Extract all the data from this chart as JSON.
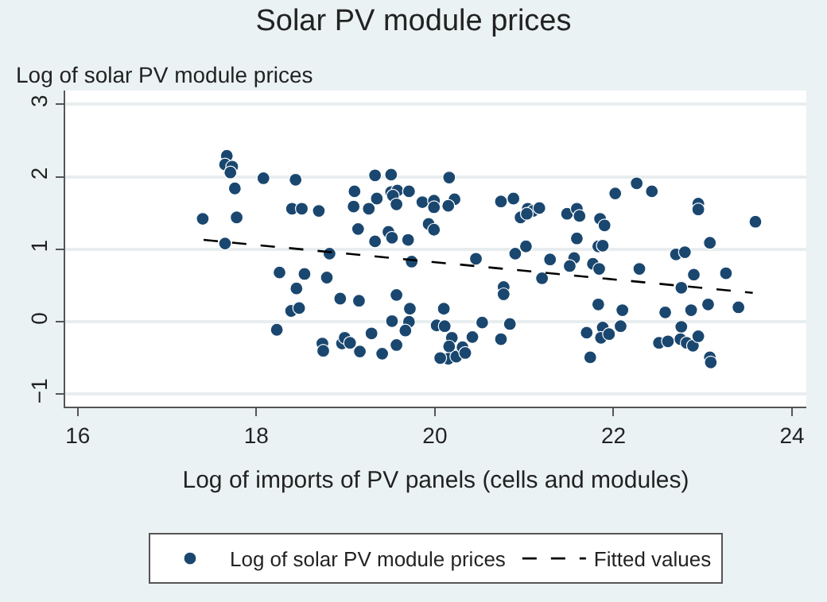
{
  "chart_data": {
    "type": "scatter",
    "title": "Solar PV module prices",
    "ylabel": "Log of solar PV module prices",
    "xlabel": "Log of imports of PV panels (cells and modules)",
    "xlim": [
      15.86,
      24.16
    ],
    "xticks": [
      16,
      18,
      20,
      22,
      24
    ],
    "ylim": [
      -1.17,
      3.19
    ],
    "yticks": [
      -1,
      0,
      1,
      2,
      3
    ],
    "grid": "y",
    "legend": "bottom",
    "series": [
      {
        "name": "Log of solar PV module prices",
        "marker": "circle",
        "color": "#1a476f",
        "x": [
          17.4,
          17.67,
          17.65,
          17.73,
          17.71,
          17.76,
          17.78,
          17.65,
          18.08,
          18.44,
          18.4,
          18.51,
          18.26,
          18.54,
          18.45,
          18.39,
          18.48,
          18.23,
          18.7,
          19.1,
          19.09,
          19.26,
          19.35,
          19.33,
          19.51,
          19.51,
          19.58,
          19.53,
          19.71,
          19.57,
          19.14,
          19.33,
          19.48,
          19.52,
          19.7,
          19.86,
          19.99,
          19.99,
          20.16,
          20.22,
          20.15,
          19.93,
          19.99,
          18.82,
          19.74,
          20.46,
          18.79,
          18.94,
          19.15,
          19.57,
          19.72,
          20.1,
          19.52,
          19.71,
          19.67,
          19.29,
          20.02,
          20.11,
          20.19,
          20.42,
          20.53,
          20.74,
          20.84,
          20.77,
          20.77,
          18.74,
          18.75,
          18.96,
          18.99,
          19.05,
          19.16,
          19.41,
          19.57,
          20.16,
          20.15,
          20.06,
          20.24,
          20.31,
          20.34,
          20.74,
          20.88,
          20.96,
          21.04,
          21.1,
          21.17,
          21.03,
          20.9,
          21.02,
          21.29,
          21.2,
          21.48,
          21.59,
          21.62,
          21.59,
          21.56,
          21.51,
          21.85,
          21.9,
          21.83,
          21.88,
          21.77,
          21.84,
          22.02,
          22.26,
          22.43,
          22.29,
          21.83,
          22.1,
          21.7,
          21.88,
          21.86,
          21.95,
          22.08,
          21.74,
          22.95,
          22.95,
          23.08,
          23.59,
          22.7,
          22.8,
          22.9,
          23.26,
          22.76,
          22.58,
          22.87,
          23.06,
          23.4,
          22.76,
          22.51,
          22.61,
          22.75,
          22.82,
          22.89,
          22.95,
          23.08,
          23.09
        ],
        "values": [
          1.42,
          2.29,
          2.17,
          2.14,
          2.06,
          1.84,
          1.44,
          1.08,
          1.98,
          1.96,
          1.56,
          1.56,
          0.68,
          0.66,
          0.46,
          0.15,
          0.19,
          -0.11,
          1.53,
          1.8,
          1.59,
          1.56,
          1.7,
          2.02,
          2.03,
          1.79,
          1.81,
          1.74,
          1.8,
          1.62,
          1.28,
          1.11,
          1.24,
          1.16,
          1.13,
          1.65,
          1.67,
          1.58,
          1.99,
          1.69,
          1.6,
          1.35,
          1.27,
          0.94,
          0.83,
          0.87,
          0.61,
          0.32,
          0.29,
          0.37,
          0.18,
          0.18,
          0.01,
          0.0,
          -0.12,
          -0.16,
          -0.05,
          -0.06,
          -0.22,
          -0.21,
          -0.01,
          -0.24,
          -0.03,
          0.48,
          0.38,
          -0.3,
          -0.4,
          -0.3,
          -0.22,
          -0.29,
          -0.41,
          -0.44,
          -0.32,
          -0.34,
          -0.51,
          -0.5,
          -0.48,
          -0.35,
          -0.43,
          1.66,
          1.7,
          1.44,
          1.56,
          1.53,
          1.57,
          1.49,
          0.94,
          1.04,
          0.86,
          0.6,
          1.49,
          1.56,
          1.46,
          1.15,
          0.88,
          0.77,
          1.42,
          1.33,
          1.04,
          1.05,
          0.8,
          0.73,
          1.77,
          1.91,
          1.8,
          0.73,
          0.24,
          0.16,
          -0.15,
          -0.08,
          -0.22,
          -0.17,
          -0.06,
          -0.49,
          1.63,
          1.55,
          1.09,
          1.38,
          0.93,
          0.96,
          0.65,
          0.67,
          0.47,
          0.13,
          0.16,
          0.24,
          0.2,
          -0.07,
          -0.29,
          -0.27,
          -0.24,
          -0.29,
          -0.33,
          -0.2,
          -0.49,
          -0.56
        ]
      },
      {
        "name": "Fitted values",
        "type": "line",
        "color": "#000000",
        "line_style": "dashed",
        "x": [
          17.41,
          23.56
        ],
        "values": [
          1.13,
          0.4
        ]
      }
    ]
  }
}
